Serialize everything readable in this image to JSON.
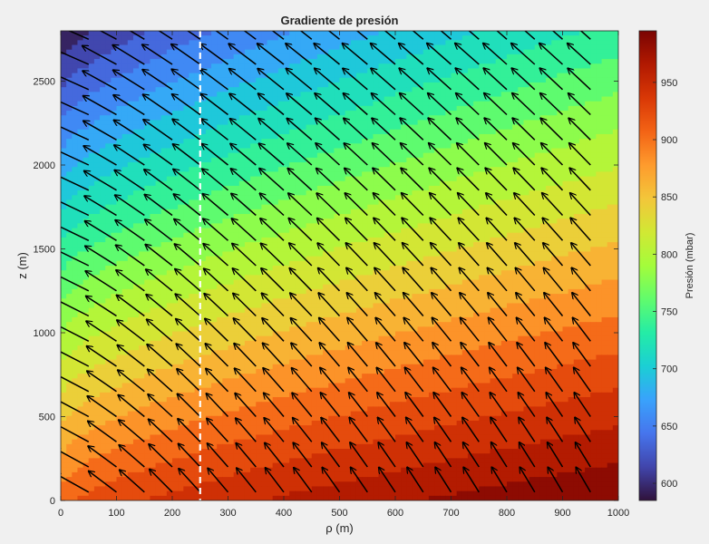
{
  "chart_data": {
    "type": "heatmap",
    "subtype": "filled-contour-with-quiver",
    "title": "Gradiente de presión",
    "xlabel": "ρ (m)",
    "ylabel": "z (m)",
    "xlim": [
      0,
      1000
    ],
    "ylim": [
      0,
      2800
    ],
    "xticks": [
      0,
      100,
      200,
      300,
      400,
      500,
      600,
      700,
      800,
      900,
      1000
    ],
    "yticks": [
      0,
      500,
      1000,
      1500,
      2000,
      2500
    ],
    "colorbar": {
      "label": "Presión (mbar)",
      "range": [
        585,
        995
      ],
      "ticks": [
        600,
        650,
        700,
        750,
        800,
        850,
        900,
        950
      ],
      "colormap": "turbo",
      "colors": [
        "#30123b",
        "#4145ab",
        "#4675ed",
        "#39a2fc",
        "#1bcfd4",
        "#24eca6",
        "#61fc6c",
        "#a4fc3b",
        "#d1e834",
        "#f3c63a",
        "#fe9b2d",
        "#f36315",
        "#d93806",
        "#b11901",
        "#7a0402"
      ]
    },
    "pressure_field": {
      "description_of_values": "pressure decreases with height z and increases with radius ρ",
      "samples": [
        {
          "rho": 0,
          "z": 0,
          "p": 900
        },
        {
          "rho": 1000,
          "z": 0,
          "p": 995
        },
        {
          "rho": 0,
          "z": 1400,
          "p": 750
        },
        {
          "rho": 1000,
          "z": 1400,
          "p": 870
        },
        {
          "rho": 0,
          "z": 2800,
          "p": 585
        },
        {
          "rho": 1000,
          "z": 2800,
          "p": 735
        }
      ]
    },
    "quiver": {
      "rho_values": [
        0,
        50,
        100,
        150,
        200,
        250,
        300,
        350,
        400,
        450,
        500,
        550,
        600,
        650,
        700,
        750,
        800,
        850,
        900,
        950
      ],
      "z_values": [
        50,
        200,
        350,
        500,
        650,
        800,
        950,
        1100,
        1250,
        1400,
        1550,
        1700,
        1850,
        2000,
        2150,
        2300,
        2450,
        2600,
        2750
      ]
    },
    "reference_line": {
      "rho": 250,
      "style": "dashed",
      "color": "#ffffff"
    },
    "grid": false
  }
}
